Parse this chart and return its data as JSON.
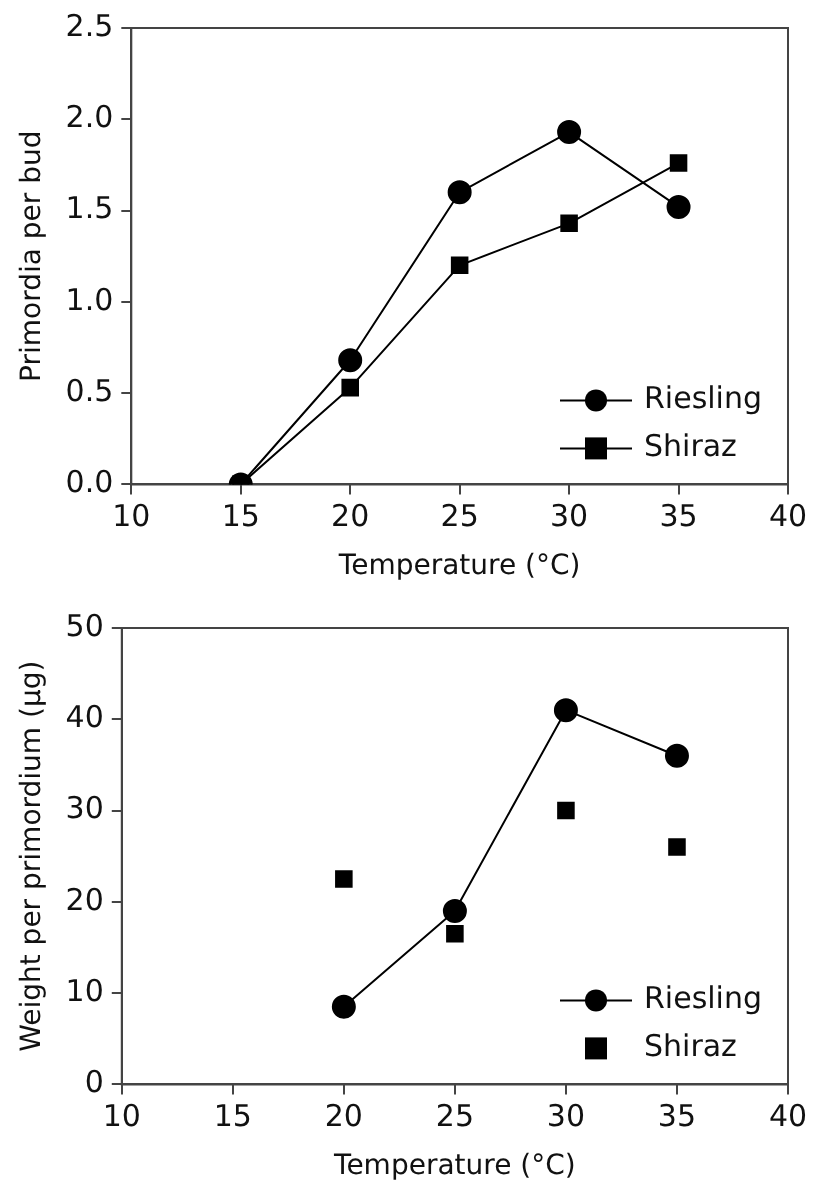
{
  "chart_data": [
    {
      "type": "line",
      "xlabel": "Temperature (°C)",
      "ylabel": "Primordia per bud",
      "xlim": [
        10,
        40
      ],
      "xticks": [
        10,
        15,
        20,
        25,
        30,
        35,
        40
      ],
      "ylim": [
        0,
        2.5
      ],
      "yticks": [
        {
          "value": 0,
          "label": "0.0"
        },
        {
          "value": 0.5,
          "label": "0.5"
        },
        {
          "value": 1,
          "label": "1.0"
        },
        {
          "value": 1.5,
          "label": "1.5"
        },
        {
          "value": 2,
          "label": "2.0"
        },
        {
          "value": 2.5,
          "label": "2.5"
        }
      ],
      "grid": false,
      "legend": "bottom right",
      "x": [
        15,
        20,
        25,
        30,
        35
      ],
      "series": [
        {
          "name": "Riesling",
          "color": "#000000",
          "marker": "circle",
          "values": [
            0,
            0.68,
            1.6,
            1.93,
            1.52
          ]
        },
        {
          "name": "Shiraz",
          "color": "#000000",
          "marker": "square",
          "values": [
            0,
            0.53,
            1.2,
            1.43,
            1.76
          ]
        }
      ]
    },
    {
      "type": "line",
      "xlabel": "Temperature (°C)",
      "ylabel": "Weight per primordium (µg)",
      "xlim": [
        10,
        40
      ],
      "xticks": [
        10,
        15,
        20,
        25,
        30,
        35,
        40
      ],
      "ylim": [
        0,
        50
      ],
      "yticks": [
        0,
        10,
        20,
        30,
        40,
        50
      ],
      "grid": false,
      "legend": "bottom right",
      "x": [
        20,
        25,
        30,
        35
      ],
      "series": [
        {
          "name": "Riesling",
          "color": "#000000",
          "marker": "circle",
          "values": [
            8.5,
            19,
            41,
            36
          ]
        },
        {
          "name": "Shiraz",
          "type": "scatter",
          "color": "#000000",
          "marker": "square",
          "values": [
            22.5,
            16.5,
            30,
            26
          ]
        }
      ]
    }
  ]
}
